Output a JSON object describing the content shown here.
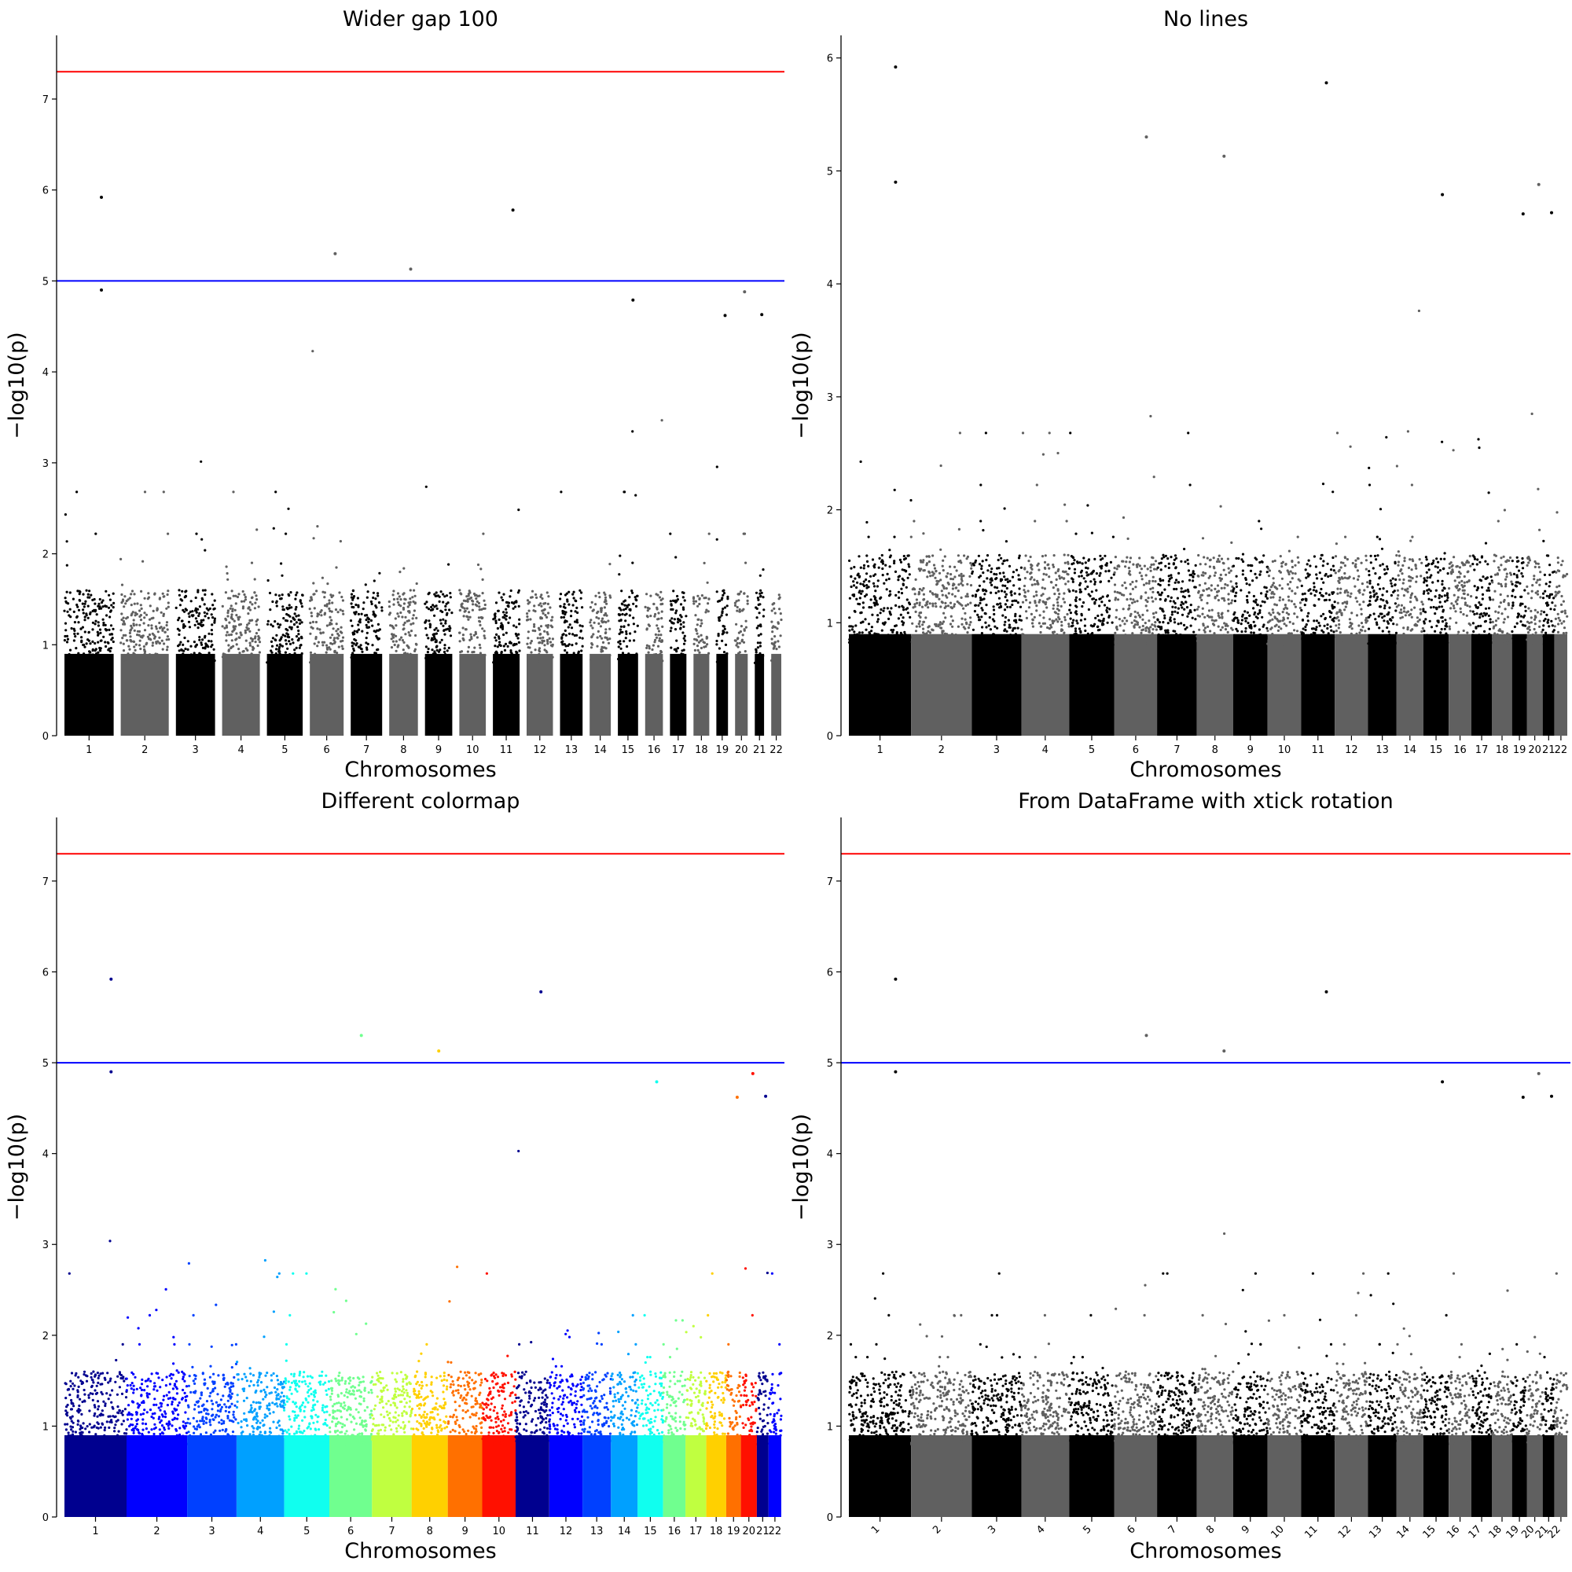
{
  "chart_data": [
    {
      "type": "scatter",
      "title": "Wider gap 100",
      "xlabel": "Chromosomes",
      "ylabel": "−log10(p)",
      "ylim": [
        0,
        7.7
      ],
      "yticks": [
        "0",
        "1",
        "2",
        "3",
        "4",
        "5",
        "6",
        "7"
      ],
      "categories": [
        "1",
        "2",
        "3",
        "4",
        "5",
        "6",
        "7",
        "8",
        "9",
        "10",
        "11",
        "12",
        "13",
        "14",
        "15",
        "16",
        "17",
        "18",
        "19",
        "20",
        "21",
        "22"
      ],
      "colors": [
        "#000000",
        "#606060"
      ],
      "gap": 100,
      "suggestive_line": 5,
      "genomewide_line": 7.3,
      "suggestive_color": "#0000ff",
      "genomewide_color": "#ff0000",
      "xtick_rotation": 0,
      "top_hits": [
        {
          "chr": "1",
          "y": 5.92
        },
        {
          "chr": "1",
          "y": 4.9
        },
        {
          "chr": "6",
          "y": 5.3
        },
        {
          "chr": "8",
          "y": 5.13
        },
        {
          "chr": "11",
          "y": 5.78
        },
        {
          "chr": "15",
          "y": 4.79
        },
        {
          "chr": "19",
          "y": 4.62
        },
        {
          "chr": "20",
          "y": 4.88
        },
        {
          "chr": "21",
          "y": 4.63
        }
      ]
    },
    {
      "type": "scatter",
      "title": "No lines",
      "xlabel": "Chromosomes",
      "ylabel": "−log10(p)",
      "ylim": [
        0,
        6.2
      ],
      "yticks": [
        "0",
        "1",
        "2",
        "3",
        "4",
        "5",
        "6"
      ],
      "categories": [
        "1",
        "2",
        "3",
        "4",
        "5",
        "6",
        "7",
        "8",
        "9",
        "10",
        "11",
        "12",
        "13",
        "14",
        "15",
        "16",
        "17",
        "18",
        "19",
        "20",
        "21",
        "22"
      ],
      "colors": [
        "#000000",
        "#606060"
      ],
      "gap": 0,
      "xtick_rotation": 0,
      "top_hits": [
        {
          "chr": "1",
          "y": 5.92
        },
        {
          "chr": "1",
          "y": 4.9
        },
        {
          "chr": "6",
          "y": 5.3
        },
        {
          "chr": "8",
          "y": 5.13
        },
        {
          "chr": "11",
          "y": 5.78
        },
        {
          "chr": "15",
          "y": 4.79
        },
        {
          "chr": "19",
          "y": 4.62
        },
        {
          "chr": "20",
          "y": 4.88
        },
        {
          "chr": "21",
          "y": 4.63
        }
      ]
    },
    {
      "type": "scatter",
      "title": "Different colormap",
      "xlabel": "Chromosomes",
      "ylabel": "−log10(p)",
      "ylim": [
        0,
        7.7
      ],
      "yticks": [
        "0",
        "1",
        "2",
        "3",
        "4",
        "5",
        "6",
        "7"
      ],
      "categories": [
        "1",
        "2",
        "3",
        "4",
        "5",
        "6",
        "7",
        "8",
        "9",
        "10",
        "11",
        "12",
        "13",
        "14",
        "15",
        "16",
        "17",
        "18",
        "19",
        "20",
        "21",
        "22"
      ],
      "colors": [
        "#00008f",
        "#0000ff",
        "#0040ff",
        "#00a0ff",
        "#10ffef",
        "#70ff8f",
        "#c0ff40",
        "#ffd000",
        "#ff7000",
        "#ff1000",
        "#00008f",
        "#0000ff",
        "#0040ff",
        "#00a0ff",
        "#10ffef",
        "#70ff8f",
        "#c0ff40",
        "#ffd000",
        "#ff7000",
        "#ff1000",
        "#00008f",
        "#0000ff"
      ],
      "gap": 0,
      "suggestive_line": 5,
      "genomewide_line": 7.3,
      "suggestive_color": "#0000ff",
      "genomewide_color": "#ff0000",
      "xtick_rotation": 0,
      "top_hits": [
        {
          "chr": "1",
          "y": 5.92
        },
        {
          "chr": "1",
          "y": 4.9
        },
        {
          "chr": "6",
          "y": 5.3
        },
        {
          "chr": "8",
          "y": 5.13
        },
        {
          "chr": "11",
          "y": 5.78
        },
        {
          "chr": "15",
          "y": 4.79
        },
        {
          "chr": "19",
          "y": 4.62
        },
        {
          "chr": "20",
          "y": 4.88
        },
        {
          "chr": "21",
          "y": 4.63
        }
      ]
    },
    {
      "type": "scatter",
      "title": "From DataFrame with xtick rotation",
      "xlabel": "Chromosomes",
      "ylabel": "−log10(p)",
      "ylim": [
        0,
        7.7
      ],
      "yticks": [
        "0",
        "1",
        "2",
        "3",
        "4",
        "5",
        "6",
        "7"
      ],
      "categories": [
        "1",
        "2",
        "3",
        "4",
        "5",
        "6",
        "7",
        "8",
        "9",
        "10",
        "11",
        "12",
        "13",
        "14",
        "15",
        "16",
        "17",
        "18",
        "19",
        "20",
        "21",
        "22"
      ],
      "colors": [
        "#000000",
        "#606060"
      ],
      "gap": 0,
      "suggestive_line": 5,
      "genomewide_line": 7.3,
      "suggestive_color": "#0000ff",
      "genomewide_color": "#ff0000",
      "xtick_rotation": 45,
      "top_hits": [
        {
          "chr": "1",
          "y": 5.92
        },
        {
          "chr": "1",
          "y": 4.9
        },
        {
          "chr": "6",
          "y": 5.3
        },
        {
          "chr": "8",
          "y": 5.13
        },
        {
          "chr": "11",
          "y": 5.78
        },
        {
          "chr": "15",
          "y": 4.79
        },
        {
          "chr": "19",
          "y": 4.62
        },
        {
          "chr": "20",
          "y": 4.88
        },
        {
          "chr": "21",
          "y": 4.63
        }
      ]
    }
  ]
}
